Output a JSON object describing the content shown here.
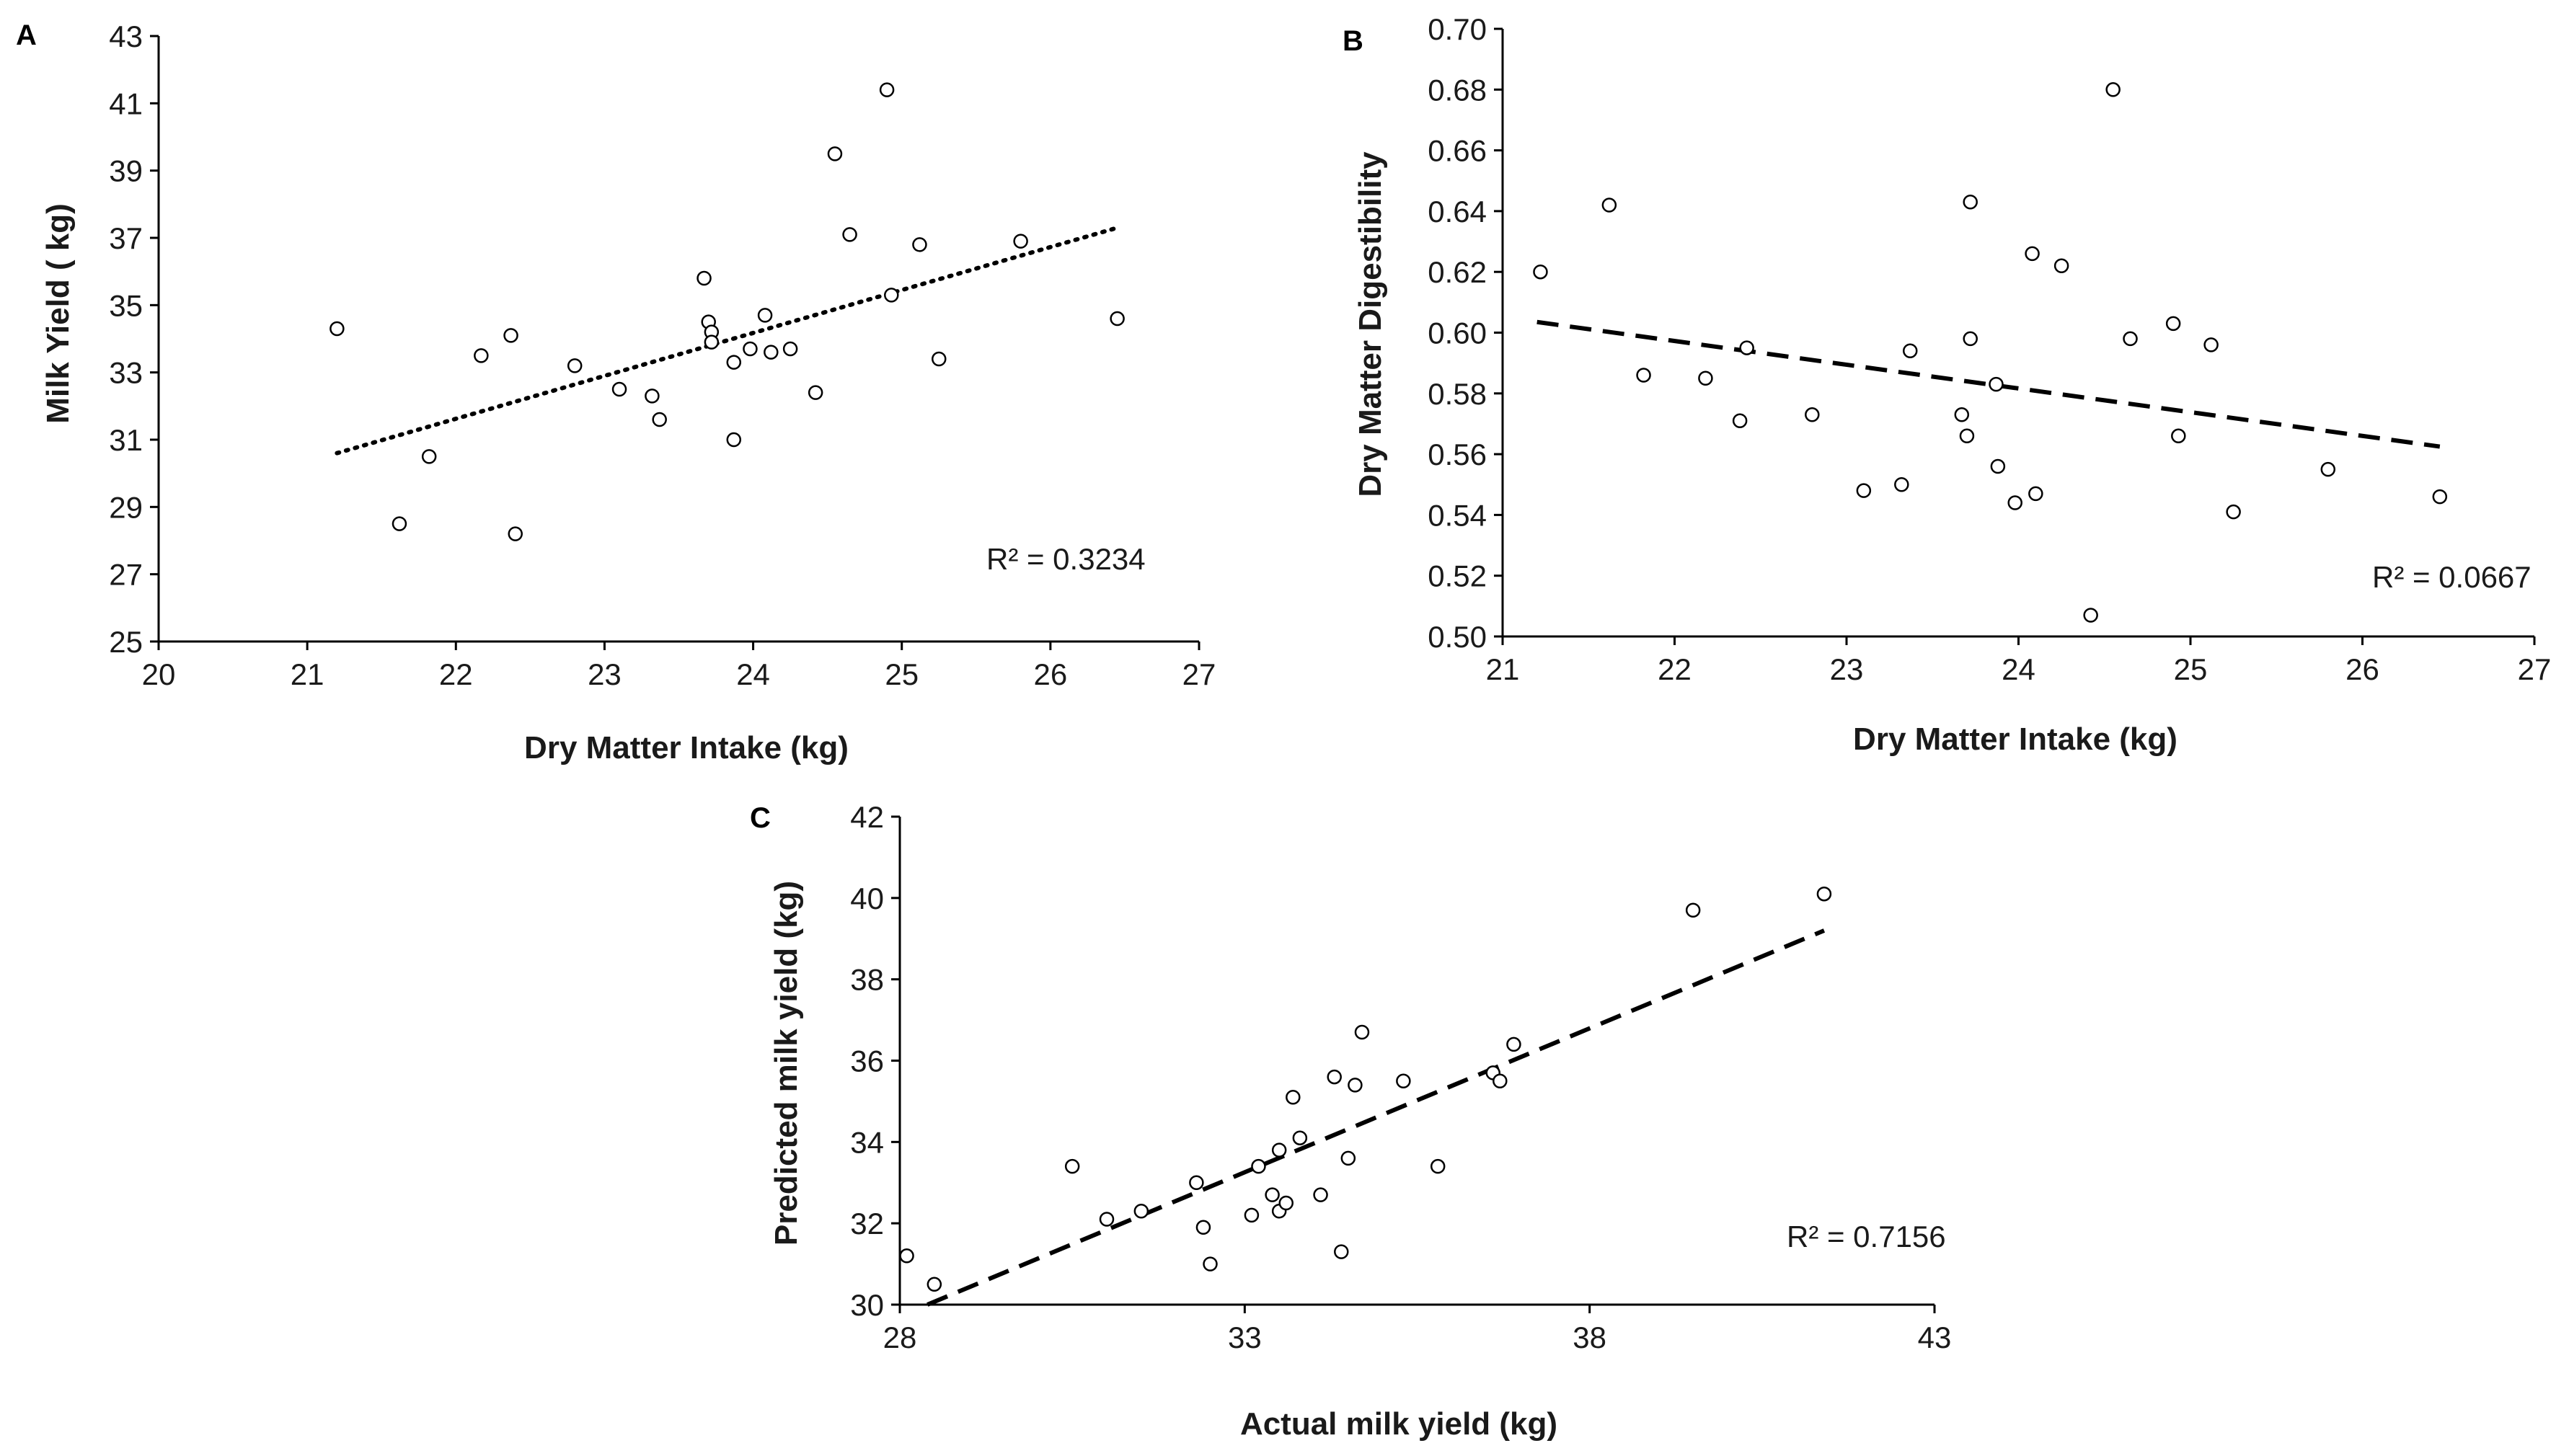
{
  "chart_data": [
    {
      "type": "scatter",
      "panel": "A",
      "xlabel": "Dry Matter Intake (kg)",
      "ylabel": "Milk Yield ( kg)",
      "xlim": [
        20,
        27
      ],
      "ylim": [
        25,
        43
      ],
      "xticks": [
        "20",
        "21",
        "22",
        "23",
        "24",
        "25",
        "26",
        "27"
      ],
      "yticks": [
        "25",
        "27",
        "29",
        "31",
        "33",
        "35",
        "37",
        "39",
        "41",
        "43"
      ],
      "trendline": {
        "style": "dotted",
        "x": [
          21.2,
          26.45
        ],
        "y": [
          30.6,
          37.3
        ]
      },
      "annotation": "R² = 0.3234",
      "points": [
        [
          21.2,
          34.3
        ],
        [
          21.62,
          28.5
        ],
        [
          21.82,
          30.5
        ],
        [
          22.17,
          33.5
        ],
        [
          22.37,
          34.1
        ],
        [
          22.4,
          28.2
        ],
        [
          22.8,
          33.2
        ],
        [
          23.1,
          32.5
        ],
        [
          23.32,
          32.3
        ],
        [
          23.37,
          31.6
        ],
        [
          23.67,
          35.8
        ],
        [
          23.7,
          34.5
        ],
        [
          23.72,
          34.2
        ],
        [
          23.72,
          33.9
        ],
        [
          23.87,
          31.0
        ],
        [
          23.87,
          33.3
        ],
        [
          23.98,
          33.7
        ],
        [
          24.08,
          34.7
        ],
        [
          24.12,
          33.6
        ],
        [
          24.25,
          33.7
        ],
        [
          24.42,
          32.4
        ],
        [
          24.55,
          39.5
        ],
        [
          24.65,
          37.1
        ],
        [
          24.9,
          41.4
        ],
        [
          24.93,
          35.3
        ],
        [
          25.12,
          36.8
        ],
        [
          25.25,
          33.4
        ],
        [
          25.8,
          36.9
        ],
        [
          26.45,
          34.6
        ]
      ]
    },
    {
      "type": "scatter",
      "panel": "B",
      "xlabel": "Dry Matter Intake (kg)",
      "ylabel": "Dry Matter Digestibility",
      "xlim": [
        21,
        27
      ],
      "ylim": [
        0.5,
        0.7
      ],
      "xticks": [
        "21",
        "22",
        "23",
        "24",
        "25",
        "26",
        "27"
      ],
      "yticks": [
        "0.50",
        "0.52",
        "0.54",
        "0.56",
        "0.58",
        "0.60",
        "0.62",
        "0.64",
        "0.66",
        "0.68",
        "0.70"
      ],
      "trendline": {
        "style": "dashed",
        "x": [
          21.2,
          26.45
        ],
        "y": [
          0.6035,
          0.5625
        ]
      },
      "annotation": "R² = 0.0667",
      "points": [
        [
          21.22,
          0.62
        ],
        [
          21.62,
          0.642
        ],
        [
          21.82,
          0.586
        ],
        [
          22.18,
          0.585
        ],
        [
          22.38,
          0.571
        ],
        [
          22.42,
          0.595
        ],
        [
          22.8,
          0.573
        ],
        [
          23.1,
          0.548
        ],
        [
          23.32,
          0.55
        ],
        [
          23.37,
          0.594
        ],
        [
          23.67,
          0.573
        ],
        [
          23.7,
          0.566
        ],
        [
          23.72,
          0.598
        ],
        [
          23.72,
          0.643
        ],
        [
          23.87,
          0.583
        ],
        [
          23.88,
          0.556
        ],
        [
          23.98,
          0.544
        ],
        [
          24.08,
          0.626
        ],
        [
          24.1,
          0.547
        ],
        [
          24.25,
          0.622
        ],
        [
          24.42,
          0.507
        ],
        [
          24.55,
          0.68
        ],
        [
          24.65,
          0.598
        ],
        [
          24.9,
          0.603
        ],
        [
          24.93,
          0.566
        ],
        [
          25.12,
          0.596
        ],
        [
          25.25,
          0.541
        ],
        [
          25.8,
          0.555
        ],
        [
          26.45,
          0.546
        ]
      ]
    },
    {
      "type": "scatter",
      "panel": "C",
      "xlabel": "Actual milk yield (kg)",
      "ylabel": "Predicted milk yield (kg)",
      "xlim": [
        28,
        43
      ],
      "ylim": [
        30,
        42
      ],
      "xticks": [
        "28",
        "33",
        "38",
        "43"
      ],
      "yticks": [
        "30",
        "32",
        "34",
        "36",
        "38",
        "40",
        "42"
      ],
      "trendline": {
        "style": "dashed",
        "x": [
          28.4,
          41.4
        ],
        "y": [
          30.0,
          39.2
        ]
      },
      "annotation": "R² = 0.7156",
      "points": [
        [
          28.1,
          31.2
        ],
        [
          28.5,
          30.5
        ],
        [
          30.5,
          33.4
        ],
        [
          31.0,
          32.1
        ],
        [
          31.5,
          32.3
        ],
        [
          32.3,
          33.0
        ],
        [
          32.4,
          31.9
        ],
        [
          32.5,
          31.0
        ],
        [
          33.1,
          32.2
        ],
        [
          33.2,
          33.4
        ],
        [
          33.4,
          32.7
        ],
        [
          33.5,
          32.3
        ],
        [
          33.5,
          33.8
        ],
        [
          33.6,
          32.5
        ],
        [
          33.7,
          35.1
        ],
        [
          33.8,
          34.1
        ],
        [
          34.1,
          32.7
        ],
        [
          34.3,
          35.6
        ],
        [
          34.4,
          31.3
        ],
        [
          34.5,
          33.6
        ],
        [
          34.6,
          35.4
        ],
        [
          34.7,
          36.7
        ],
        [
          35.3,
          35.5
        ],
        [
          35.8,
          33.4
        ],
        [
          36.6,
          35.7
        ],
        [
          36.7,
          35.5
        ],
        [
          36.9,
          36.4
        ],
        [
          39.5,
          39.7
        ],
        [
          41.4,
          40.1
        ]
      ]
    }
  ]
}
